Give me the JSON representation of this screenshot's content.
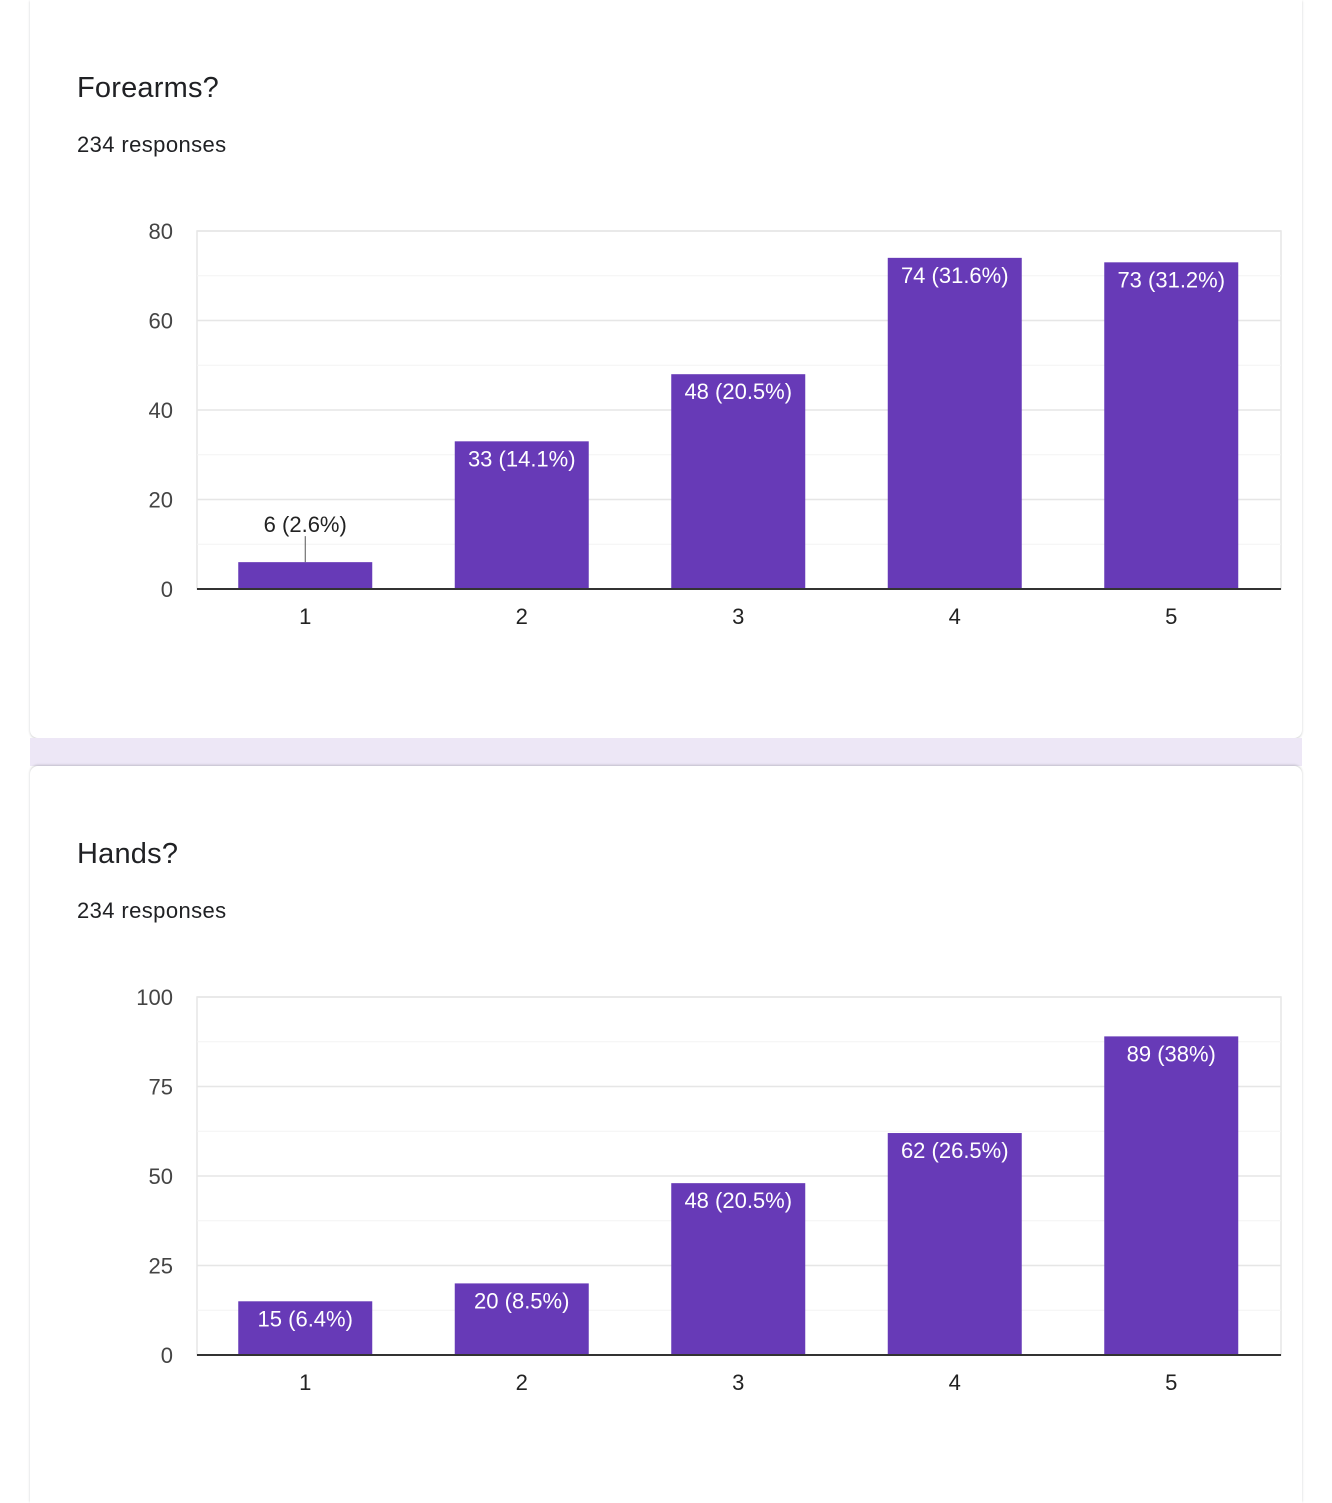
{
  "cards": [
    {
      "title": "Forearms?",
      "responses": "234 responses"
    },
    {
      "title": "Hands?",
      "responses": "234 responses"
    }
  ],
  "colors": {
    "bar": "#673ab7",
    "grid": "#e6e6e6",
    "minor_grid": "#f3f3f3",
    "axis": "#333333",
    "label_inside": "#ffffff",
    "label_outside": "#222222",
    "tick_text": "#444444"
  },
  "chart_data": [
    {
      "type": "bar",
      "title": "Forearms?",
      "categories": [
        "1",
        "2",
        "3",
        "4",
        "5"
      ],
      "values": [
        6,
        33,
        48,
        74,
        73
      ],
      "data_labels": [
        "6 (2.6%)",
        "33 (14.1%)",
        "48 (20.5%)",
        "74 (31.6%)",
        "73 (31.2%)"
      ],
      "yticks": [
        0,
        20,
        40,
        60,
        80
      ],
      "ylim": [
        0,
        80
      ],
      "xlabel": "",
      "ylabel": ""
    },
    {
      "type": "bar",
      "title": "Hands?",
      "categories": [
        "1",
        "2",
        "3",
        "4",
        "5"
      ],
      "values": [
        15,
        20,
        48,
        62,
        89
      ],
      "data_labels": [
        "15 (6.4%)",
        "20 (8.5%)",
        "48 (20.5%)",
        "62 (26.5%)",
        "89 (38%)"
      ],
      "yticks": [
        0,
        25,
        50,
        75,
        100
      ],
      "ylim": [
        0,
        100
      ],
      "xlabel": "",
      "ylabel": ""
    }
  ]
}
